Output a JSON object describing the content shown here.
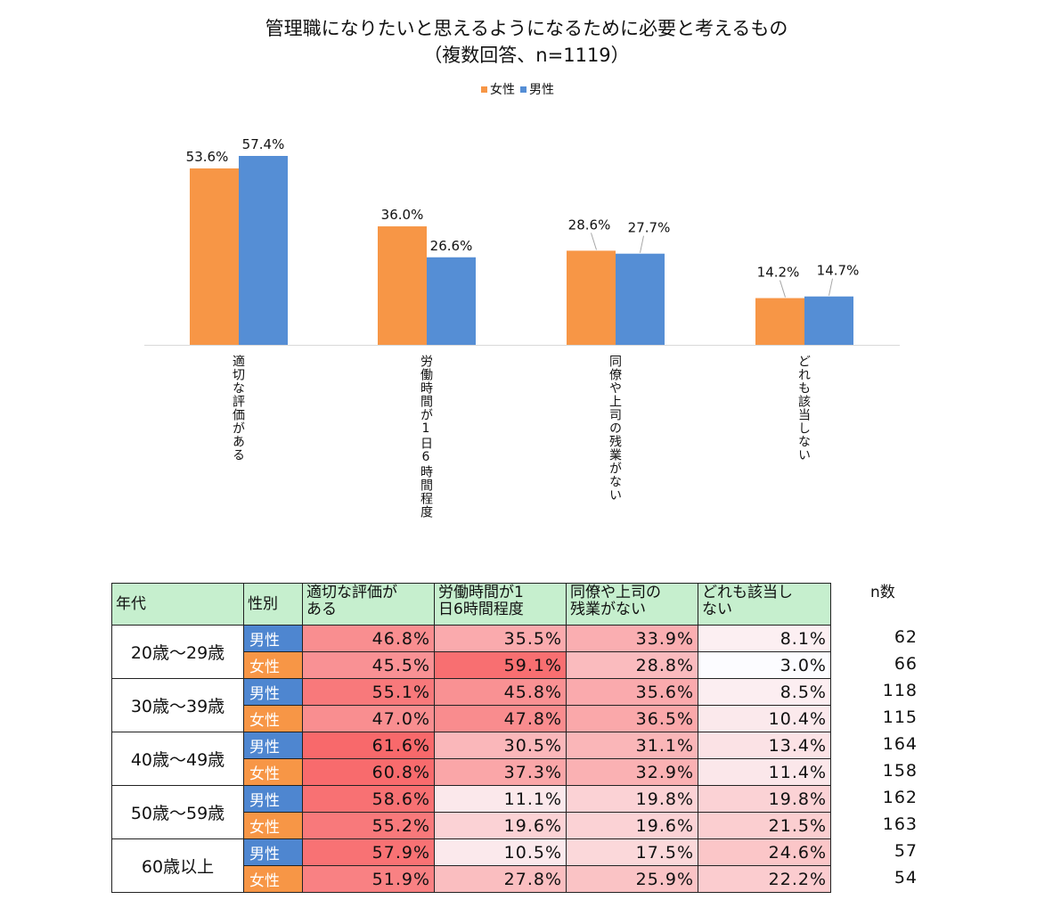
{
  "chart_data": [
    {
      "type": "bar",
      "title": "管理職になりたいと思えるようになるために必要と考えるもの",
      "subtitle": "（複数回答、n=1119）",
      "categories": [
        "適切な評価がある",
        "労働時間が1日6時間程度",
        "同僚や上司の残業がない",
        "どれも該当しない"
      ],
      "series": [
        {
          "name": "女性",
          "color": "#f79646",
          "values": [
            53.6,
            36.0,
            28.6,
            14.2
          ]
        },
        {
          "name": "男性",
          "color": "#558ed5",
          "values": [
            57.4,
            26.6,
            27.7,
            14.7
          ]
        }
      ],
      "value_suffix": "%",
      "ylim": [
        0,
        60
      ],
      "xlabel": "",
      "ylabel": "",
      "legend": "top"
    },
    {
      "type": "table",
      "headers": [
        "年代",
        "性別",
        "適切な評価がある",
        "労働時間が1日6時間程度",
        "同僚や上司の残業がない",
        "どれも該当しない"
      ],
      "header_display": [
        "年代",
        "性別",
        "適切な評価が\nある",
        "労働時間が1\n日6時間程度",
        "同僚や上司の\n残業がない",
        "どれも該当し\nない"
      ],
      "n_header": "n数",
      "groups": [
        {
          "age": "20歳〜29歳",
          "rows": [
            {
              "sex": "男性",
              "values": [
                46.8,
                35.5,
                33.9,
                8.1
              ],
              "labels": [
                "46.8%",
                "35.5%",
                "33.9%",
                "8.1%"
              ],
              "n": 62
            },
            {
              "sex": "女性",
              "values": [
                45.5,
                59.1,
                28.8,
                3.0
              ],
              "labels": [
                "45.5%",
                "59.1%",
                "28.8%",
                "3.0%"
              ],
              "n": 66
            }
          ]
        },
        {
          "age": "30歳〜39歳",
          "rows": [
            {
              "sex": "男性",
              "values": [
                55.1,
                45.8,
                35.6,
                8.5
              ],
              "labels": [
                "55.1%",
                "45.8%",
                "35.6%",
                "8.5%"
              ],
              "n": 118
            },
            {
              "sex": "女性",
              "values": [
                47.0,
                47.8,
                36.5,
                10.4
              ],
              "labels": [
                "47.0%",
                "47.8%",
                "36.5%",
                "10.4%"
              ],
              "n": 115
            }
          ]
        },
        {
          "age": "40歳〜49歳",
          "rows": [
            {
              "sex": "男性",
              "values": [
                61.6,
                30.5,
                31.1,
                13.4
              ],
              "labels": [
                "61.6%",
                "30.5%",
                "31.1%",
                "13.4%"
              ],
              "n": 164
            },
            {
              "sex": "女性",
              "values": [
                60.8,
                37.3,
                32.9,
                11.4
              ],
              "labels": [
                "60.8%",
                "37.3%",
                "32.9%",
                "11.4%"
              ],
              "n": 158
            }
          ]
        },
        {
          "age": "50歳〜59歳",
          "rows": [
            {
              "sex": "男性",
              "values": [
                58.6,
                11.1,
                19.8,
                19.8
              ],
              "labels": [
                "58.6%",
                "11.1%",
                "19.8%",
                "19.8%"
              ],
              "n": 162
            },
            {
              "sex": "女性",
              "values": [
                55.2,
                19.6,
                19.6,
                21.5
              ],
              "labels": [
                "55.2%",
                "19.6%",
                "19.6%",
                "21.5%"
              ],
              "n": 163
            }
          ]
        },
        {
          "age": "60歳以上",
          "rows": [
            {
              "sex": "男性",
              "values": [
                57.9,
                10.5,
                17.5,
                24.6
              ],
              "labels": [
                "57.9%",
                "10.5%",
                "17.5%",
                "24.6%"
              ],
              "n": 57
            },
            {
              "sex": "女性",
              "values": [
                51.9,
                27.8,
                25.9,
                22.2
              ],
              "labels": [
                "51.9%",
                "27.8%",
                "25.9%",
                "22.2%"
              ],
              "n": 54
            }
          ]
        }
      ],
      "heat_scale": {
        "min": 3.0,
        "max": 61.6,
        "low_color": "#fcfcff",
        "high_color": "#f8696b"
      }
    }
  ]
}
